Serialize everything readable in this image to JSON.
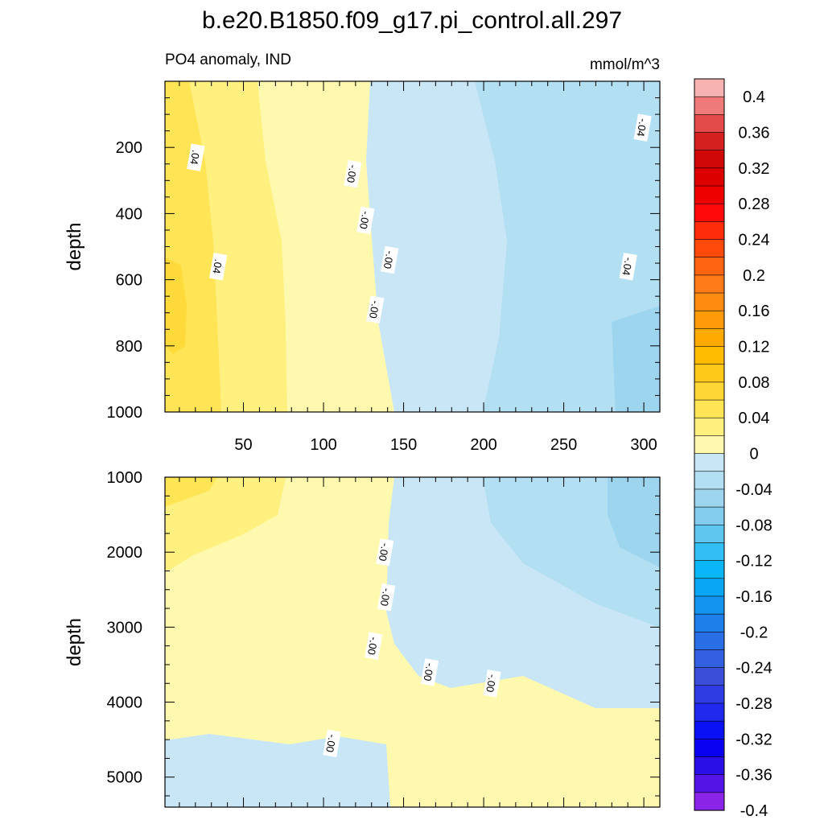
{
  "chart_data": {
    "type": "heatmap",
    "title": "b.e20.B1850.f09_g17.pi_control.all.297",
    "subtitle_left": "PO4 anomaly, IND",
    "subtitle_right": "mmol/m^3",
    "x_tick_labels": [
      "50",
      "100",
      "150",
      "200",
      "250",
      "300"
    ],
    "x_ticks": [
      50,
      100,
      150,
      200,
      250,
      300
    ],
    "xlim": [
      1,
      310
    ],
    "panels": [
      {
        "name": "upper",
        "ylabel": "depth",
        "ylim": [
          0,
          1000
        ],
        "y_ticks": [
          200,
          400,
          600,
          800,
          1000
        ],
        "y_tick_labels": [
          "200",
          "400",
          "600",
          "800",
          "1000"
        ],
        "contour_labels": [
          {
            "text": ".04",
            "x": 20,
            "y": 230
          },
          {
            "text": ".04",
            "x": 34,
            "y": 560
          },
          {
            "text": "-.00",
            "x": 118,
            "y": 280
          },
          {
            "text": "-.00",
            "x": 126,
            "y": 420
          },
          {
            "text": "-.00",
            "x": 141,
            "y": 540
          },
          {
            "text": "-.00",
            "x": 132,
            "y": 690
          },
          {
            "text": "-.04",
            "x": 299,
            "y": 140
          },
          {
            "text": "-.04",
            "x": 290,
            "y": 560
          }
        ]
      },
      {
        "name": "lower",
        "ylabel": "depth",
        "ylim": [
          1000,
          5400
        ],
        "y_ticks": [
          1000,
          2000,
          3000,
          4000,
          5000
        ],
        "y_tick_labels": [
          "1000",
          "2000",
          "3000",
          "4000",
          "5000"
        ],
        "contour_labels": [
          {
            "text": "-.00",
            "x": 138,
            "y": 2000
          },
          {
            "text": "-.00",
            "x": 139,
            "y": 2600
          },
          {
            "text": "-.00",
            "x": 131,
            "y": 3250
          },
          {
            "text": "-.00",
            "x": 166,
            "y": 3600
          },
          {
            "text": "-.00",
            "x": 205,
            "y": 3750
          },
          {
            "text": "-.00",
            "x": 105,
            "y": 4550
          }
        ]
      }
    ],
    "colorbar": {
      "labels": [
        "0.4",
        "0.36",
        "0.32",
        "0.28",
        "0.24",
        "0.2",
        "0.16",
        "0.12",
        "0.08",
        "0.04",
        "0",
        "-0.04",
        "-0.08",
        "-0.12",
        "-0.16",
        "-0.2",
        "-0.24",
        "-0.28",
        "-0.32",
        "-0.36",
        "-0.4"
      ],
      "colors": [
        "#f7b2b2",
        "#ef7a7a",
        "#e34a4a",
        "#d52020",
        "#d00808",
        "#dd0000",
        "#ee0000",
        "#ff0a0a",
        "#ff2c0a",
        "#ff4a0a",
        "#ff6410",
        "#ff7a18",
        "#ff8c10",
        "#ff9a08",
        "#ffaa00",
        "#ffbb00",
        "#ffc91a",
        "#ffd735",
        "#ffe455",
        "#fff080",
        "#fff9b0",
        "#c7e5f5",
        "#b3dff3",
        "#9dd5ef",
        "#84cdef",
        "#5fc6f0",
        "#33bef5",
        "#0ab6f7",
        "#08a6f5",
        "#1394f0",
        "#1e7fea",
        "#2a6ee6",
        "#3360e0",
        "#3a4ed8",
        "#2f3ce4",
        "#1f28ec",
        "#0a12f5",
        "#0a00f2",
        "#2a10e6",
        "#5514e6",
        "#8a24e6"
      ]
    }
  }
}
